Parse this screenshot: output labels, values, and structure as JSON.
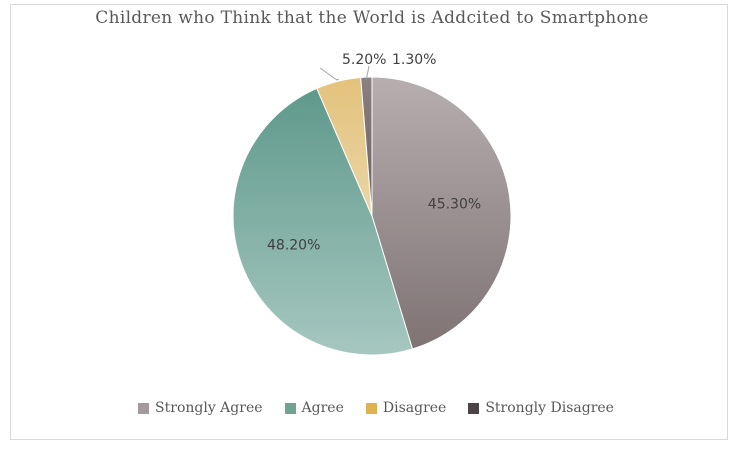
{
  "chart_data": {
    "type": "pie",
    "title": "Children who Think that the World is Addcited to Smartphone",
    "categories": [
      "Strongly Agree",
      "Agree",
      "Disagree",
      "Strongly Disagree"
    ],
    "values": [
      45.3,
      48.2,
      5.2,
      1.3
    ],
    "data_labels": [
      "45.30%",
      "48.20%",
      "5.20%",
      "1.30%"
    ],
    "colors": [
      "#a79e9f",
      "#86b4aa",
      "#e5c98a",
      "#7d7173"
    ],
    "legend_colors": [
      "#a49a9b",
      "#6fa394",
      "#e0b24f",
      "#4b4345"
    ],
    "legend_position": "bottom"
  },
  "legend": {
    "items": [
      {
        "label": "Strongly Agree"
      },
      {
        "label": "Agree"
      },
      {
        "label": "Disagree"
      },
      {
        "label": "Strongly Disagree"
      }
    ]
  }
}
